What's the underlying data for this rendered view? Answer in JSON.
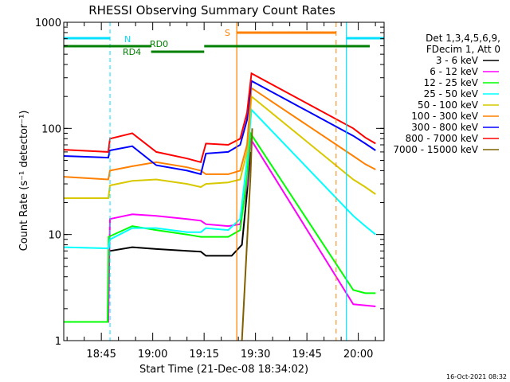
{
  "chart_data": {
    "type": "line",
    "title": "RHESSI Observing Summary Count Rates",
    "xlabel": "Start Time (21-Dec-08 18:34:02)",
    "ylabel": "Count Rate (s⁻¹ detector⁻¹)",
    "yscale": "log",
    "ylim": [
      1,
      1000
    ],
    "xlim_minutes": [
      0,
      93.5
    ],
    "x_ticks": [
      {
        "label": "18:45",
        "min": 10.97
      },
      {
        "label": "19:00",
        "min": 25.97
      },
      {
        "label": "19:15",
        "min": 40.97
      },
      {
        "label": "19:30",
        "min": 55.97
      },
      {
        "label": "19:45",
        "min": 70.97
      },
      {
        "label": "20:00",
        "min": 85.97
      }
    ],
    "y_ticks": [
      {
        "label": "1",
        "value": 1
      },
      {
        "label": "10",
        "value": 10
      },
      {
        "label": "100",
        "value": 100
      },
      {
        "label": "1000",
        "value": 1000
      }
    ],
    "legend_header": [
      "Det 1,3,4,5,6,9,",
      "FDecim 1, Att 0"
    ],
    "legend_placement": "right",
    "timestamp": "16-Oct-2021 08:32",
    "annotations": [
      {
        "label": "N",
        "color": "#00e0ff",
        "x_start": 0,
        "x_end": 13.5
      },
      {
        "label": "N",
        "color": "#00e0ff",
        "x_start": 82.5,
        "x_end": 93.5
      },
      {
        "label": "S",
        "color": "#ff8000",
        "x_start": 50.5,
        "x_end": 79.5
      },
      {
        "label": "RD0",
        "color": "#008000"
      },
      {
        "label": "RD4",
        "color": "#008000"
      }
    ],
    "series": [
      {
        "name": "3 - 6 keV",
        "color": "#000000",
        "values": [
          [
            13.5,
            7.0
          ],
          [
            20,
            7.6
          ],
          [
            27,
            7.3
          ],
          [
            36,
            7.0
          ],
          [
            40,
            6.9
          ],
          [
            41.5,
            6.3
          ],
          [
            49,
            6.3
          ],
          [
            52,
            8.0
          ],
          [
            53.5,
            25
          ],
          [
            54.5,
            60
          ]
        ]
      },
      {
        "name": "6 - 12 keV",
        "color": "#ff00ff",
        "values": [
          [
            0,
            1.5
          ],
          [
            13,
            1.5
          ],
          [
            13.5,
            14
          ],
          [
            20,
            15.5
          ],
          [
            27,
            15
          ],
          [
            36,
            14
          ],
          [
            40,
            13.5
          ],
          [
            41.5,
            12.5
          ],
          [
            48,
            12
          ],
          [
            51.5,
            12.5
          ],
          [
            53.5,
            30
          ],
          [
            54.5,
            80
          ],
          [
            84.5,
            2.2
          ],
          [
            91,
            2.1
          ]
        ]
      },
      {
        "name": "12 - 25 keV",
        "color": "#00ff00",
        "values": [
          [
            0,
            1.5
          ],
          [
            12.8,
            1.5
          ],
          [
            13.1,
            9.5
          ],
          [
            20,
            12
          ],
          [
            27,
            11
          ],
          [
            36,
            10
          ],
          [
            40,
            9.5
          ],
          [
            41.5,
            9.5
          ],
          [
            48,
            9.5
          ],
          [
            51.5,
            11
          ],
          [
            53.5,
            35
          ],
          [
            54.5,
            90
          ],
          [
            84.5,
            3.0
          ],
          [
            88,
            2.8
          ],
          [
            91,
            2.8
          ]
        ]
      },
      {
        "name": "25 - 50 keV",
        "color": "#00ffff",
        "values": [
          [
            0,
            7.6
          ],
          [
            13,
            7.4
          ],
          [
            13.5,
            9.0
          ],
          [
            20,
            11.5
          ],
          [
            27,
            11.5
          ],
          [
            36,
            10.5
          ],
          [
            40,
            10.5
          ],
          [
            41.5,
            11.5
          ],
          [
            48,
            11
          ],
          [
            51.5,
            14
          ],
          [
            53.5,
            50
          ],
          [
            54.8,
            150
          ],
          [
            84.5,
            15
          ],
          [
            88,
            12
          ],
          [
            91,
            10
          ]
        ]
      },
      {
        "name": "50 - 100 keV",
        "color": "#d8c800",
        "values": [
          [
            0,
            22
          ],
          [
            13,
            22
          ],
          [
            13.5,
            29
          ],
          [
            20,
            32
          ],
          [
            27,
            33
          ],
          [
            36,
            30
          ],
          [
            40,
            28
          ],
          [
            41.5,
            30
          ],
          [
            48,
            31
          ],
          [
            51.5,
            33
          ],
          [
            53.5,
            60
          ],
          [
            54.8,
            200
          ],
          [
            84.5,
            33
          ],
          [
            88,
            28
          ],
          [
            91,
            24
          ]
        ]
      },
      {
        "name": "100 - 300 keV",
        "color": "#ff8000",
        "values": [
          [
            0,
            35
          ],
          [
            13,
            33
          ],
          [
            13.5,
            40
          ],
          [
            20,
            44
          ],
          [
            27,
            48
          ],
          [
            36,
            43
          ],
          [
            40,
            40
          ],
          [
            41.5,
            37
          ],
          [
            48,
            37
          ],
          [
            51.5,
            40
          ],
          [
            53.5,
            70
          ],
          [
            54.8,
            240
          ],
          [
            84.5,
            55
          ],
          [
            88,
            46
          ],
          [
            91,
            41
          ]
        ]
      },
      {
        "name": "300 - 800 keV",
        "color": "#0000ff",
        "values": [
          [
            0,
            55
          ],
          [
            13,
            53
          ],
          [
            13.5,
            62
          ],
          [
            20,
            68
          ],
          [
            27,
            45
          ],
          [
            36,
            40
          ],
          [
            40,
            37
          ],
          [
            41.5,
            58
          ],
          [
            48,
            60
          ],
          [
            51.5,
            70
          ],
          [
            53.5,
            120
          ],
          [
            54.8,
            280
          ],
          [
            84.5,
            85
          ],
          [
            88,
            72
          ],
          [
            91,
            62
          ]
        ]
      },
      {
        "name": "800 - 7000 keV",
        "color": "#ff0000",
        "values": [
          [
            0,
            63
          ],
          [
            13,
            60
          ],
          [
            13.5,
            80
          ],
          [
            20,
            90
          ],
          [
            27,
            60
          ],
          [
            36,
            52
          ],
          [
            40,
            48
          ],
          [
            41.5,
            72
          ],
          [
            48,
            70
          ],
          [
            51.5,
            80
          ],
          [
            53.5,
            140
          ],
          [
            54.8,
            330
          ],
          [
            84.5,
            100
          ],
          [
            88,
            82
          ],
          [
            91,
            72
          ]
        ]
      },
      {
        "name": "7000 - 15000 keV",
        "color": "#806000",
        "values": [
          [
            52,
            1
          ],
          [
            54.5,
            35
          ],
          [
            55,
            100
          ]
        ]
      }
    ]
  }
}
